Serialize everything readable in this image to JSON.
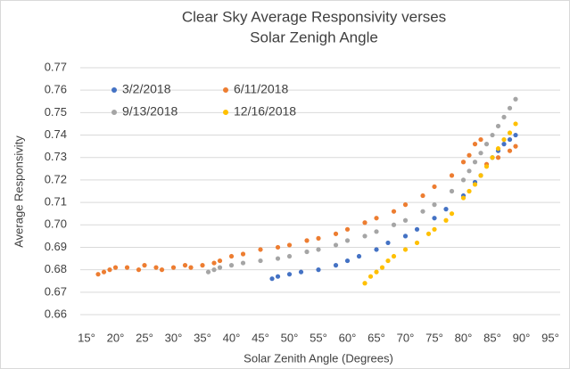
{
  "chart_data": {
    "type": "scatter",
    "title": [
      "Clear Sky Average Responsivity verses",
      "Solar Zenigh Angle"
    ],
    "xlabel": "Solar Zenith Angle (Degrees)",
    "ylabel": "Average Responsivity",
    "xlim": [
      15,
      95
    ],
    "xticks": [
      {
        "value": 15,
        "label": "15°"
      },
      {
        "value": 20,
        "label": "20°"
      },
      {
        "value": 25,
        "label": "25°"
      },
      {
        "value": 30,
        "label": "30°"
      },
      {
        "value": 35,
        "label": "35°"
      },
      {
        "value": 40,
        "label": "40°"
      },
      {
        "value": 45,
        "label": "45°"
      },
      {
        "value": 50,
        "label": "50°"
      },
      {
        "value": 55,
        "label": "55°"
      },
      {
        "value": 60,
        "label": "60°"
      },
      {
        "value": 65,
        "label": "65°"
      },
      {
        "value": 70,
        "label": "70°"
      },
      {
        "value": 75,
        "label": "75°"
      },
      {
        "value": 80,
        "label": "80°"
      },
      {
        "value": 85,
        "label": "85°"
      },
      {
        "value": 90,
        "label": "90°"
      },
      {
        "value": 95,
        "label": "95°"
      }
    ],
    "ylim": [
      0.66,
      0.77
    ],
    "yticks": [
      0.66,
      0.67,
      0.68,
      0.69,
      {
        "value": 0.7,
        "label": "0.70"
      },
      0.71,
      0.72,
      0.73,
      0.74,
      0.75,
      0.76,
      0.77
    ],
    "grid": true,
    "legend": "upper left",
    "series": [
      {
        "name": "3/2/2018",
        "color": "#4472c4",
        "x": [
          47,
          48,
          50,
          52,
          55,
          58,
          60,
          62,
          65,
          67,
          70,
          72,
          75,
          77,
          80,
          82,
          83,
          85,
          86,
          87,
          88,
          89
        ],
        "values": [
          0.676,
          0.677,
          0.678,
          0.679,
          0.68,
          0.682,
          0.684,
          0.686,
          0.689,
          0.692,
          0.695,
          0.698,
          0.703,
          0.707,
          0.713,
          0.719,
          0.722,
          0.73,
          0.733,
          0.736,
          0.738,
          0.74
        ]
      },
      {
        "name": "6/11/2018",
        "color": "#ed7d31",
        "x": [
          17,
          18,
          19,
          20,
          22,
          24,
          25,
          27,
          28,
          30,
          32,
          33,
          35,
          37,
          38,
          40,
          42,
          45,
          48,
          50,
          53,
          55,
          58,
          60,
          63,
          65,
          68,
          70,
          73,
          75,
          78,
          80,
          81,
          82,
          83,
          84,
          86,
          88,
          89
        ],
        "values": [
          0.678,
          0.679,
          0.68,
          0.681,
          0.681,
          0.68,
          0.682,
          0.681,
          0.68,
          0.681,
          0.682,
          0.681,
          0.682,
          0.683,
          0.684,
          0.686,
          0.687,
          0.689,
          0.69,
          0.691,
          0.693,
          0.694,
          0.696,
          0.698,
          0.701,
          0.703,
          0.706,
          0.709,
          0.713,
          0.717,
          0.722,
          0.728,
          0.731,
          0.736,
          0.738,
          0.727,
          0.73,
          0.733,
          0.735
        ]
      },
      {
        "name": "9/13/2018",
        "color": "#a5a5a5",
        "x": [
          36,
          37,
          38,
          40,
          42,
          45,
          48,
          50,
          53,
          55,
          58,
          60,
          63,
          65,
          68,
          70,
          73,
          75,
          78,
          80,
          81,
          82,
          83,
          84,
          85,
          86,
          87,
          88,
          89
        ],
        "values": [
          0.679,
          0.68,
          0.681,
          0.682,
          0.683,
          0.684,
          0.685,
          0.686,
          0.688,
          0.689,
          0.691,
          0.693,
          0.695,
          0.697,
          0.7,
          0.702,
          0.706,
          0.709,
          0.715,
          0.72,
          0.724,
          0.728,
          0.732,
          0.736,
          0.74,
          0.744,
          0.748,
          0.752,
          0.756
        ]
      },
      {
        "name": "12/16/2018",
        "color": "#ffc000",
        "x": [
          63,
          64,
          65,
          66,
          67,
          68,
          70,
          72,
          74,
          75,
          77,
          78,
          80,
          81,
          82,
          83,
          84,
          85,
          86,
          87,
          88,
          89
        ],
        "values": [
          0.674,
          0.677,
          0.679,
          0.681,
          0.684,
          0.686,
          0.689,
          0.692,
          0.696,
          0.698,
          0.702,
          0.705,
          0.712,
          0.715,
          0.718,
          0.722,
          0.726,
          0.73,
          0.734,
          0.738,
          0.741,
          0.745
        ]
      }
    ]
  }
}
